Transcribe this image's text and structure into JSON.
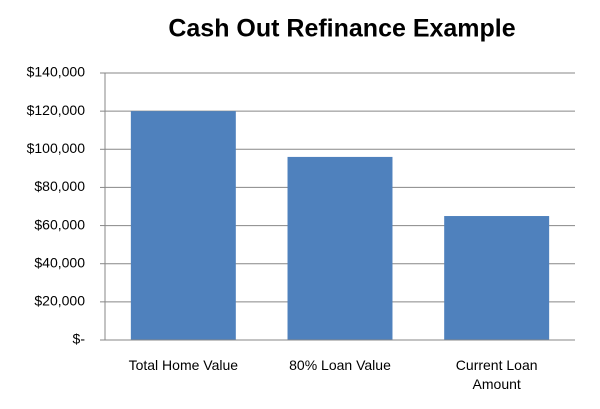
{
  "chart_data": {
    "type": "bar",
    "title": "Cash Out Refinance Example",
    "categories": [
      "Total Home Value",
      "80% Loan Value",
      "Current Loan Amount"
    ],
    "values": [
      120000,
      96000,
      65000
    ],
    "color": "#4f81bd",
    "ylim": [
      0,
      140000
    ],
    "yticks": [
      {
        "value": 0,
        "label": "$-"
      },
      {
        "value": 20000,
        "label": "$20,000"
      },
      {
        "value": 40000,
        "label": "$40,000"
      },
      {
        "value": 60000,
        "label": "$60,000"
      },
      {
        "value": 80000,
        "label": "$80,000"
      },
      {
        "value": 100000,
        "label": "$100,000"
      },
      {
        "value": 120000,
        "label": "$120,000"
      },
      {
        "value": 140000,
        "label": "$140,000"
      }
    ],
    "grid": true
  }
}
